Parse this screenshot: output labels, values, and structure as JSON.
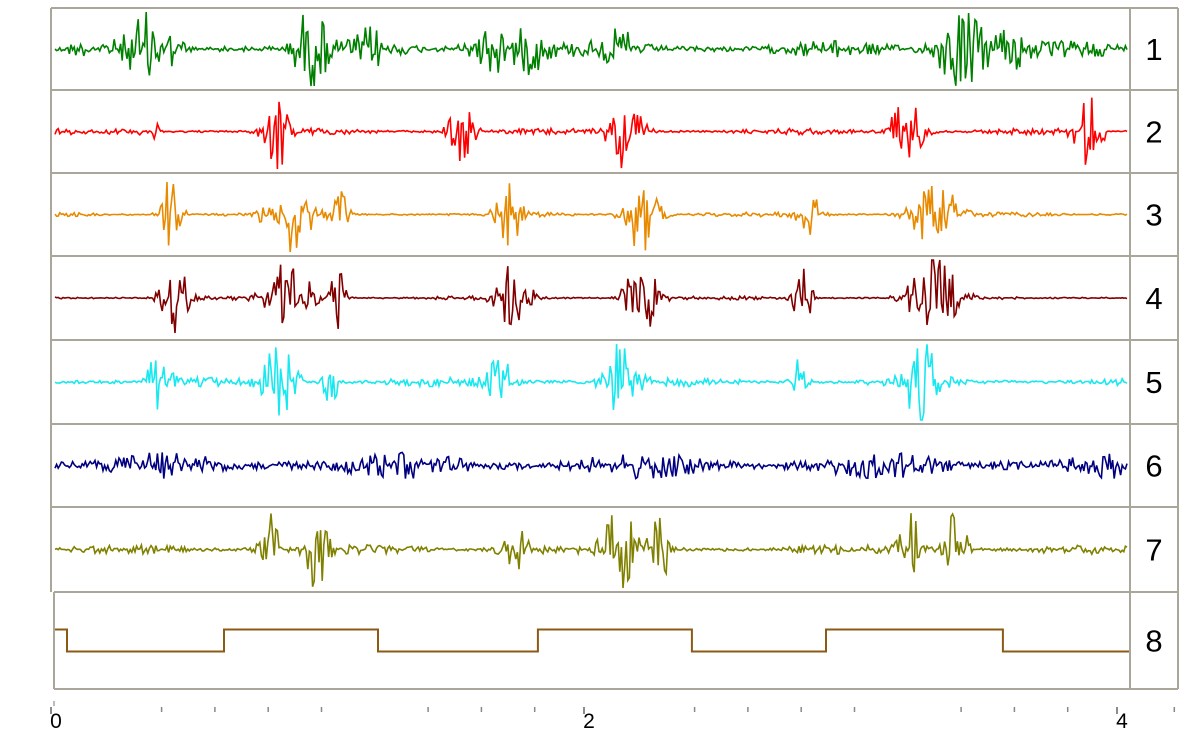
{
  "chart_data": {
    "type": "line",
    "title": "",
    "xlabel": "",
    "ylabel": "",
    "xlim": [
      0,
      4
    ],
    "x_tick_labels": [
      "0",
      "2",
      "4"
    ],
    "x_tick_label_values": [
      0,
      2,
      4
    ],
    "x_minor_ticks": [
      0.4,
      0.6,
      0.8,
      1.0,
      1.4,
      1.6,
      1.8,
      2.4,
      2.6,
      2.8,
      3.0,
      3.4,
      3.6,
      3.8,
      4.2
    ],
    "grid": false,
    "channels": [
      {
        "label": "1",
        "color": "#008000",
        "baseline_noise": 0.22,
        "bursts": [
          [
            0.36,
            0.9,
            0.08
          ],
          [
            0.96,
            1.0,
            0.06
          ],
          [
            1.18,
            0.4,
            0.05
          ],
          [
            1.63,
            0.7,
            0.07
          ],
          [
            1.78,
            0.6,
            0.06
          ],
          [
            2.12,
            0.4,
            0.05
          ],
          [
            3.4,
            1.0,
            0.09
          ],
          [
            3.58,
            0.8,
            0.06
          ]
        ]
      },
      {
        "label": "2",
        "color": "#ff0000",
        "baseline_noise": 0.08,
        "bursts": [
          [
            0.36,
            0.35,
            0.03
          ],
          [
            0.83,
            1.0,
            0.05
          ],
          [
            1.52,
            0.8,
            0.05
          ],
          [
            2.14,
            1.0,
            0.06
          ],
          [
            3.19,
            1.0,
            0.06
          ],
          [
            3.88,
            0.9,
            0.05
          ]
        ]
      },
      {
        "label": "3",
        "color": "#e88a00",
        "baseline_noise": 0.06,
        "bursts": [
          [
            0.43,
            0.9,
            0.04
          ],
          [
            0.88,
            1.0,
            0.08
          ],
          [
            1.07,
            0.6,
            0.03
          ],
          [
            1.71,
            0.8,
            0.05
          ],
          [
            2.2,
            1.0,
            0.06
          ],
          [
            2.83,
            0.6,
            0.04
          ],
          [
            3.3,
            1.0,
            0.08
          ]
        ]
      },
      {
        "label": "4",
        "color": "#800000",
        "baseline_noise": 0.05,
        "bursts": [
          [
            0.45,
            0.9,
            0.05
          ],
          [
            0.88,
            1.0,
            0.08
          ],
          [
            1.06,
            0.8,
            0.03
          ],
          [
            1.72,
            0.9,
            0.06
          ],
          [
            2.2,
            1.0,
            0.06
          ],
          [
            2.8,
            0.8,
            0.04
          ],
          [
            3.3,
            1.0,
            0.09
          ]
        ]
      },
      {
        "label": "5",
        "color": "#18e8f0",
        "baseline_noise": 0.12,
        "bursts": [
          [
            0.39,
            0.8,
            0.04
          ],
          [
            0.84,
            1.0,
            0.06
          ],
          [
            1.03,
            0.7,
            0.03
          ],
          [
            1.67,
            0.6,
            0.05
          ],
          [
            2.12,
            1.0,
            0.06
          ],
          [
            2.8,
            0.7,
            0.03
          ],
          [
            3.25,
            1.0,
            0.06
          ]
        ]
      },
      {
        "label": "6",
        "color": "#000080",
        "baseline_noise": 0.35,
        "bursts": []
      },
      {
        "label": "7",
        "color": "#808000",
        "baseline_noise": 0.12,
        "bursts": [
          [
            0.81,
            0.9,
            0.04
          ],
          [
            0.98,
            1.0,
            0.04
          ],
          [
            1.74,
            0.5,
            0.06
          ],
          [
            2.12,
            1.0,
            0.06
          ],
          [
            2.27,
            0.8,
            0.04
          ],
          [
            3.21,
            0.9,
            0.04
          ],
          [
            3.38,
            1.0,
            0.04
          ]
        ]
      },
      {
        "label": "8",
        "color": "#8b5a14",
        "type": "step",
        "steps": [
          [
            0.0,
            1
          ],
          [
            0.045,
            0
          ],
          [
            0.634,
            1
          ],
          [
            1.212,
            0
          ],
          [
            1.812,
            1
          ],
          [
            2.39,
            0
          ],
          [
            2.893,
            1
          ],
          [
            3.557,
            0
          ],
          [
            4.03,
            0
          ]
        ]
      }
    ]
  }
}
